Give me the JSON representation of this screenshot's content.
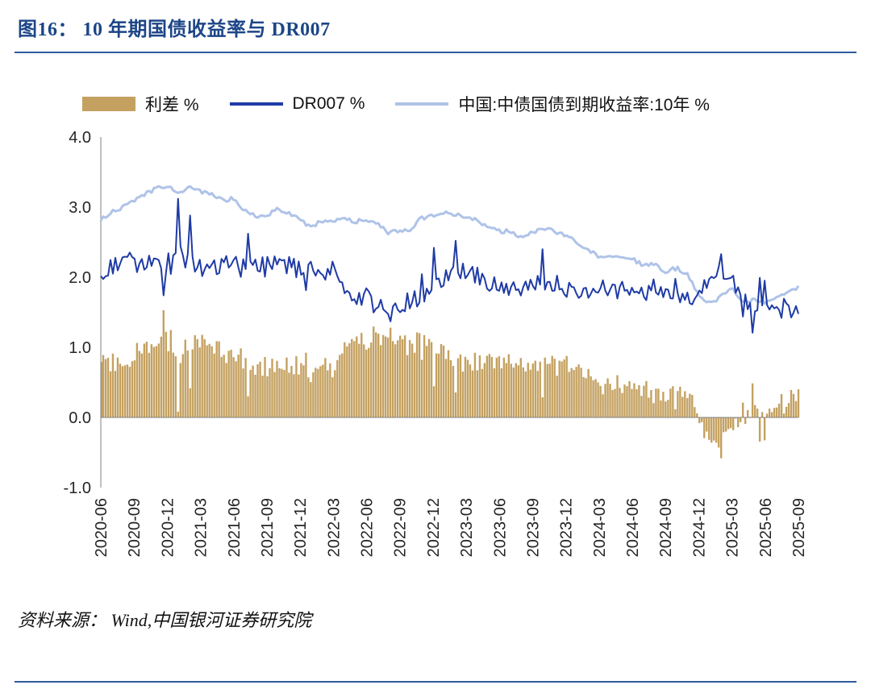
{
  "header": {
    "title": "图16： 10 年期国债收益率与 DR007"
  },
  "footer": {
    "source": "资料来源： Wind,中国银河证券研究院"
  },
  "chart_data": {
    "type": "combo-bar-line",
    "title": "图16： 10 年期国债收益率与 DR007",
    "xlabel": "",
    "ylabel": "",
    "ylim": [
      -1.0,
      4.0
    ],
    "ytick_values": [
      4.0,
      3.0,
      2.0,
      1.0,
      0.0,
      -1.0
    ],
    "ytick_labels": [
      "4.0",
      "3.0",
      "2.0",
      "1.0",
      "0.0",
      "-1.0"
    ],
    "legend_position": "top",
    "grid": false,
    "x_tick_labels": [
      "2020-06",
      "2020-09",
      "2020-12",
      "2021-03",
      "2021-06",
      "2021-09",
      "2021-12",
      "2022-03",
      "2022-06",
      "2022-09",
      "2022-12",
      "2023-03",
      "2023-06",
      "2023-09",
      "2023-12",
      "2024-03",
      "2024-06",
      "2024-09",
      "2024-12",
      "2025-03",
      "2025-06",
      "2025-09"
    ],
    "x_categories_monthly": [
      "2020-06",
      "2020-07",
      "2020-08",
      "2020-09",
      "2020-10",
      "2020-11",
      "2020-12",
      "2021-01",
      "2021-02",
      "2021-03",
      "2021-04",
      "2021-05",
      "2021-06",
      "2021-07",
      "2021-08",
      "2021-09",
      "2021-10",
      "2021-11",
      "2021-12",
      "2022-01",
      "2022-02",
      "2022-03",
      "2022-04",
      "2022-05",
      "2022-06",
      "2022-07",
      "2022-08",
      "2022-09",
      "2022-10",
      "2022-11",
      "2022-12",
      "2023-01",
      "2023-02",
      "2023-03",
      "2023-04",
      "2023-05",
      "2023-06",
      "2023-07",
      "2023-08",
      "2023-09",
      "2023-10",
      "2023-11",
      "2023-12",
      "2024-01",
      "2024-02",
      "2024-03",
      "2024-04",
      "2024-05",
      "2024-06",
      "2024-07",
      "2024-08",
      "2024-09",
      "2024-10",
      "2024-11",
      "2024-12",
      "2025-01",
      "2025-02",
      "2025-03",
      "2025-04",
      "2025-05",
      "2025-06",
      "2025-07",
      "2025-08",
      "2025-09"
    ],
    "series": [
      {
        "name": "利差 %",
        "type": "bar",
        "color": "#C4A161",
        "values": [
          0.87,
          0.78,
          0.8,
          0.92,
          0.98,
          0.98,
          1.25,
          0.85,
          1.08,
          1.1,
          1.06,
          0.92,
          0.9,
          0.77,
          0.72,
          0.71,
          0.79,
          0.76,
          0.67,
          0.62,
          0.72,
          0.71,
          0.99,
          1.1,
          1.08,
          1.18,
          1.15,
          1.09,
          1.0,
          1.13,
          0.92,
          0.91,
          0.78,
          0.79,
          0.78,
          0.84,
          0.74,
          0.85,
          0.76,
          0.7,
          0.78,
          0.73,
          0.76,
          0.67,
          0.5,
          0.42,
          0.45,
          0.49,
          0.38,
          0.37,
          0.46,
          0.23,
          0.43,
          0.37,
          -0.05,
          -0.35,
          -0.43,
          -0.09,
          -0.06,
          0.1,
          0.13,
          0.21,
          0.28,
          0.39
        ]
      },
      {
        "name": "DR007 %",
        "type": "line",
        "color": "#1F3BA5",
        "values": [
          1.95,
          2.15,
          2.2,
          2.18,
          2.2,
          2.28,
          2.05,
          2.35,
          2.2,
          2.12,
          2.12,
          2.18,
          2.22,
          2.18,
          2.15,
          2.18,
          2.18,
          2.16,
          2.15,
          2.1,
          2.08,
          2.1,
          1.85,
          1.7,
          1.72,
          1.58,
          1.48,
          1.58,
          1.68,
          1.72,
          1.95,
          2.0,
          2.12,
          2.08,
          2.02,
          1.88,
          1.92,
          1.8,
          1.82,
          1.95,
          1.92,
          1.93,
          1.82,
          1.83,
          1.88,
          1.88,
          1.83,
          1.82,
          1.88,
          1.8,
          1.72,
          1.85,
          1.7,
          1.68,
          1.8,
          1.98,
          2.15,
          1.92,
          1.72,
          1.58,
          1.52,
          1.48,
          1.49,
          1.48
        ]
      },
      {
        "name": "中国:中债国债到期收益率:10年 %",
        "type": "line",
        "color": "#AFC3E8",
        "values": [
          2.82,
          2.93,
          3.0,
          3.1,
          3.18,
          3.26,
          3.3,
          3.2,
          3.28,
          3.22,
          3.18,
          3.1,
          3.12,
          2.95,
          2.87,
          2.89,
          2.97,
          2.92,
          2.82,
          2.72,
          2.8,
          2.81,
          2.84,
          2.8,
          2.8,
          2.76,
          2.63,
          2.67,
          2.68,
          2.85,
          2.87,
          2.91,
          2.9,
          2.87,
          2.8,
          2.72,
          2.66,
          2.65,
          2.58,
          2.65,
          2.7,
          2.66,
          2.58,
          2.5,
          2.38,
          2.3,
          2.28,
          2.31,
          2.26,
          2.17,
          2.18,
          2.08,
          2.13,
          2.05,
          1.75,
          1.63,
          1.72,
          1.83,
          1.66,
          1.68,
          1.65,
          1.69,
          1.77,
          1.87
        ]
      }
    ],
    "dr007_spikes": [
      {
        "month": "2021-01",
        "value": 3.12
      },
      {
        "month": "2021-02",
        "value": 2.88
      },
      {
        "month": "2022-12",
        "value": 2.42
      },
      {
        "month": "2023-02",
        "value": 2.52
      },
      {
        "month": "2023-10",
        "value": 2.4
      },
      {
        "month": "2025-02",
        "value": 2.33
      },
      {
        "month": "2025-06",
        "value": 1.95
      }
    ],
    "render_hints": {
      "seed": 20,
      "points": 290,
      "dr007_jitter": 0.26,
      "yield_jitter": 0.06,
      "up_spike_prob": 0.06,
      "up_spike_max": 0.45,
      "down_spike_prob": 0.045,
      "down_spike_max": 0.35
    }
  }
}
